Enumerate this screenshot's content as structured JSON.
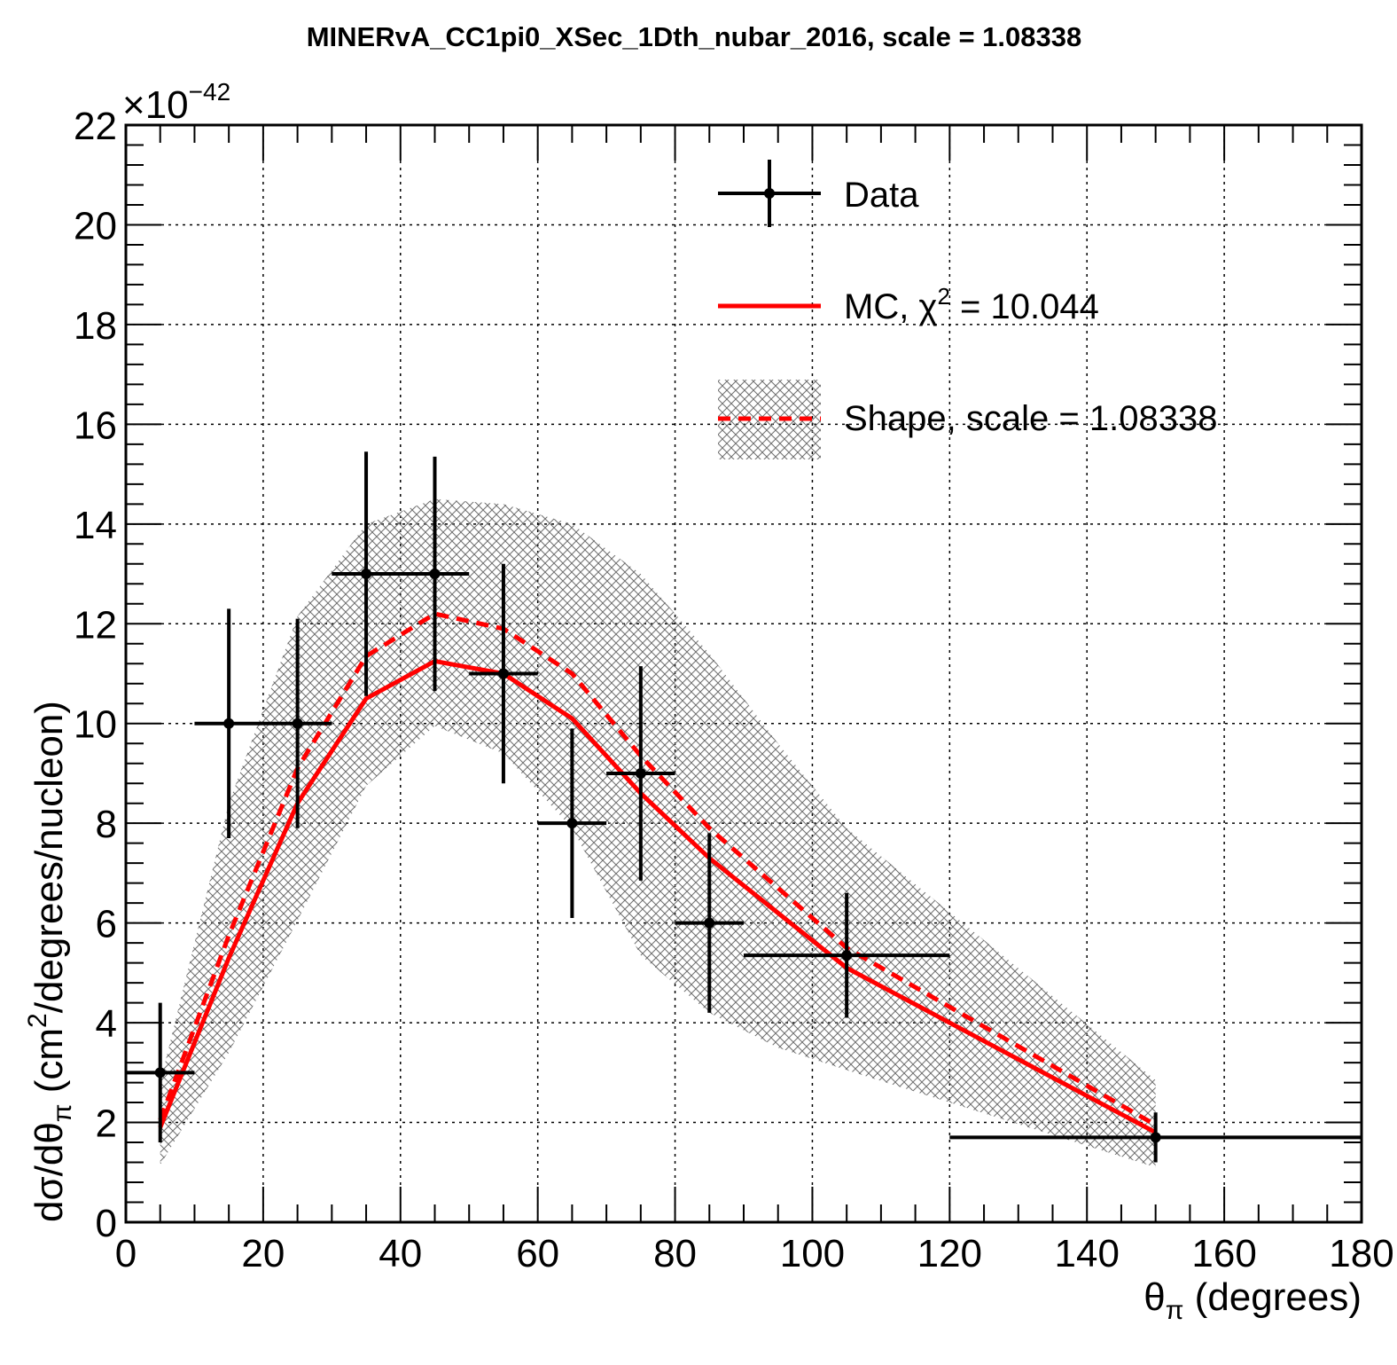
{
  "chart_data": {
    "type": "line",
    "title": "MINERvA_CC1pi0_XSec_1Dth_nubar_2016, scale = 1.08338",
    "xlabel": {
      "main": "θ",
      "sub": "π",
      "rest": " (degrees)"
    },
    "ylabel": {
      "pre": "dσ/dθ",
      "sub": "π",
      "mid": " (cm",
      "sup": "2",
      "post": "/degrees/nucleon)"
    },
    "y_multiplier": {
      "base": "×10",
      "exponent": "−42"
    },
    "xlim": [
      0,
      180
    ],
    "ylim": [
      0,
      22
    ],
    "x_ticks": [
      0,
      20,
      40,
      60,
      80,
      100,
      120,
      140,
      160,
      180
    ],
    "x_tick_labels": [
      "0",
      "20",
      "40",
      "60",
      "80",
      "100",
      "120",
      "140",
      "160",
      "180"
    ],
    "y_ticks": [
      0,
      2,
      4,
      6,
      8,
      10,
      12,
      14,
      16,
      18,
      20,
      22
    ],
    "y_tick_labels": [
      "0",
      "2",
      "4",
      "6",
      "8",
      "10",
      "12",
      "14",
      "16",
      "18",
      "20",
      "22"
    ],
    "grid": true,
    "legend_placement": "top-right",
    "legend": {
      "data": "Data",
      "mc": {
        "pre": "MC, χ",
        "sup": "2",
        "post": " = 10.044"
      },
      "shape": "Shape, scale = 1.08338"
    },
    "colors": {
      "data": "#000000",
      "mc": "#ff0000",
      "shape": "#ff0000",
      "band": "#7a7a7a"
    },
    "data": {
      "x": [
        5,
        15,
        25,
        35,
        45,
        55,
        65,
        75,
        85,
        105,
        150
      ],
      "xlow": [
        0,
        10,
        20,
        30,
        40,
        50,
        60,
        70,
        80,
        90,
        120
      ],
      "xhigh": [
        10,
        20,
        30,
        40,
        50,
        60,
        70,
        80,
        90,
        120,
        180
      ],
      "y": [
        3.0,
        10.0,
        10.0,
        13.0,
        13.0,
        11.0,
        8.0,
        9.0,
        6.0,
        5.35,
        1.7
      ],
      "yerr": [
        1.4,
        2.3,
        2.1,
        2.45,
        2.35,
        2.2,
        1.9,
        2.15,
        1.8,
        1.25,
        0.5
      ]
    },
    "mc": {
      "x": [
        5,
        15,
        25,
        35,
        45,
        55,
        65,
        75,
        85,
        95,
        105,
        150
      ],
      "y": [
        1.9,
        5.3,
        8.4,
        10.5,
        11.25,
        11.0,
        10.1,
        8.6,
        7.3,
        6.2,
        5.1,
        1.8
      ]
    },
    "shape": {
      "x": [
        5,
        15,
        25,
        35,
        45,
        55,
        65,
        75,
        85,
        95,
        105,
        150
      ],
      "y": [
        2.05,
        5.75,
        9.1,
        11.35,
        12.2,
        11.9,
        11.0,
        9.35,
        7.9,
        6.7,
        5.5,
        1.95
      ],
      "band_low": [
        1.15,
        3.4,
        6.05,
        8.75,
        9.95,
        9.4,
        7.9,
        5.35,
        4.2,
        3.5,
        3.05,
        1.1
      ],
      "band_high": [
        2.8,
        8.4,
        12.15,
        14.0,
        14.5,
        14.4,
        14.0,
        13.0,
        11.4,
        9.6,
        7.9,
        2.85
      ]
    }
  }
}
